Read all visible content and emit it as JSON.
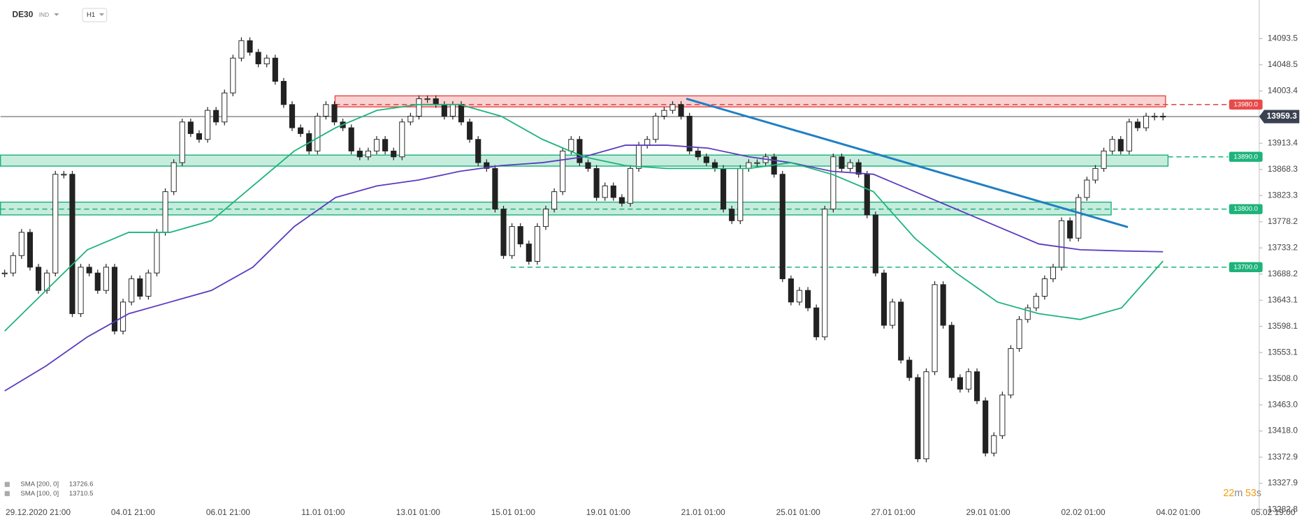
{
  "chart_data": {
    "type": "candlestick",
    "header": {
      "symbol": "DE30",
      "market": "IND",
      "interval": "H1"
    },
    "x_labels": [
      "29.12.2020 21:00",
      "04.01 21:00",
      "06.01 21:00",
      "11.01 01:00",
      "13.01 01:00",
      "15.01 01:00",
      "19.01 01:00",
      "21.01 01:00",
      "25.01 01:00",
      "27.01 01:00",
      "29.01 01:00",
      "02.02 01:00",
      "04.02 01:00",
      "05.02 19:00"
    ],
    "ylim": [
      13280,
      14160
    ],
    "yticks": [
      14093.5,
      14048.5,
      14003.4,
      13913.4,
      13868.3,
      13823.3,
      13778.2,
      13733.2,
      13688.2,
      13643.1,
      13598.1,
      13553.1,
      {
        "value": 13508,
        "label": "13508.0"
      },
      {
        "value": 13463,
        "label": "13463.0"
      },
      {
        "value": 13418,
        "label": "13418.0"
      },
      13372.9,
      13327.9,
      13282.8
    ],
    "series": [
      {
        "name": "DE30",
        "color": "#222222",
        "values": [
          13690,
          13720,
          13760,
          13700,
          13660,
          13690,
          13860,
          13860,
          13620,
          13700,
          13690,
          13660,
          13700,
          13590,
          13640,
          13680,
          13650,
          13690,
          13760,
          13830,
          13880,
          13950,
          13930,
          13920,
          13970,
          13950,
          14000,
          14060,
          14090,
          14070,
          14050,
          14060,
          14020,
          13980,
          13940,
          13930,
          13900,
          13960,
          13980,
          13950,
          13940,
          13900,
          13890,
          13900,
          13920,
          13900,
          13890,
          13950,
          13960,
          13990,
          13990,
          13980,
          13960,
          13980,
          13950,
          13920,
          13880,
          13870,
          13800,
          13720,
          13770,
          13740,
          13710,
          13770,
          13800,
          13830,
          13900,
          13920,
          13880,
          13870,
          13820,
          13840,
          13820,
          13810,
          13870,
          13910,
          13920,
          13960,
          13970,
          13980,
          13960,
          13900,
          13890,
          13880,
          13870,
          13800,
          13780,
          13870,
          13880,
          13880,
          13890,
          13860,
          13680,
          13640,
          13660,
          13630,
          13580,
          13800,
          13890,
          13870,
          13880,
          13860,
          13790,
          13690,
          13600,
          13640,
          13540,
          13510,
          13370,
          13520,
          13670,
          13600,
          13510,
          13490,
          13520,
          13470,
          13380,
          13410,
          13480,
          13560,
          13610,
          13630,
          13650,
          13680,
          13700,
          13780,
          13750,
          13820,
          13850,
          13870,
          13900,
          13920,
          13900,
          13950,
          13940,
          13960,
          13960,
          13959.3
        ]
      },
      {
        "name": "SMA [200, 0]",
        "legend_value": "13726.6",
        "color": "#5b3bbf",
        "values": [
          13487,
          13530,
          13580,
          13620,
          13640,
          13660,
          13700,
          13770,
          13820,
          13840,
          13850,
          13865,
          13875,
          13880,
          13890,
          13910,
          13910,
          13905,
          13890,
          13880,
          13865,
          13860,
          13830,
          13800,
          13770,
          13740,
          13730,
          13728,
          13726.6
        ]
      },
      {
        "name": "SMA [100, 0]",
        "legend_value": "13710.5",
        "color": "#1db37a",
        "values": [
          13590,
          13660,
          13730,
          13760,
          13760,
          13780,
          13840,
          13900,
          13940,
          13970,
          13980,
          13980,
          13960,
          13920,
          13890,
          13875,
          13870,
          13870,
          13870,
          13880,
          13860,
          13830,
          13750,
          13690,
          13640,
          13620,
          13610,
          13630,
          13710.5
        ]
      }
    ],
    "zones": [
      {
        "color": "#e84a4a",
        "values": [
          13976,
          13995
        ]
      },
      {
        "color": "#1db37a",
        "values": [
          13874,
          13893
        ]
      },
      {
        "color": "#1db37a",
        "values": [
          13790,
          13812
        ]
      }
    ],
    "levels": [
      {
        "color": "#e84a4a",
        "value": 13980,
        "label": "13980.0"
      },
      {
        "color": "#1db37a",
        "value": 13890,
        "label": "13890.0"
      },
      {
        "color": "#1db37a",
        "value": 13800,
        "label": "13800.0"
      },
      {
        "color": "#1db37a",
        "value": 13700,
        "label": "13700.0"
      }
    ],
    "trendline": {
      "color": "#1f7fc4",
      "values": [
        13990,
        13769
      ]
    },
    "current_price": {
      "value": 13959.3,
      "label": "13959.3"
    },
    "timer": [
      "22",
      "m",
      "53",
      "s"
    ]
  }
}
